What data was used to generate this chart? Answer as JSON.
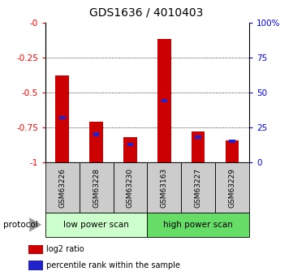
{
  "title": "GDS1636 / 4010403",
  "samples": [
    "GSM63226",
    "GSM63228",
    "GSM63230",
    "GSM63163",
    "GSM63227",
    "GSM63229"
  ],
  "log2_ratio": [
    -0.38,
    -0.71,
    -0.82,
    -0.12,
    -0.78,
    -0.84
  ],
  "percentile_rank": [
    32,
    20,
    13,
    44,
    18,
    15
  ],
  "bar_color": "#cc0000",
  "blue_color": "#2222cc",
  "groups": [
    {
      "label": "low power scan",
      "start": 0,
      "end": 3,
      "color": "#ccffcc"
    },
    {
      "label": "high power scan",
      "start": 3,
      "end": 6,
      "color": "#66dd66"
    }
  ],
  "protocol_label": "protocol",
  "ylim_left": [
    -1.0,
    0.0
  ],
  "ylim_right": [
    0,
    100
  ],
  "yticks_left": [
    0.0,
    -0.25,
    -0.5,
    -0.75,
    -1.0
  ],
  "ytick_labels_left": [
    "-0",
    "-0.25",
    "-0.5",
    "-0.75",
    "-1"
  ],
  "yticks_right": [
    0,
    25,
    50,
    75,
    100
  ],
  "ytick_labels_right": [
    "0",
    "25",
    "50",
    "75",
    "100%"
  ],
  "bar_width": 0.4,
  "blue_bar_width": 0.18,
  "legend_items": [
    {
      "color": "#cc0000",
      "label": "log2 ratio"
    },
    {
      "color": "#2222cc",
      "label": "percentile rank within the sample"
    }
  ],
  "label_box_color": "#cccccc",
  "title_fontsize": 10
}
